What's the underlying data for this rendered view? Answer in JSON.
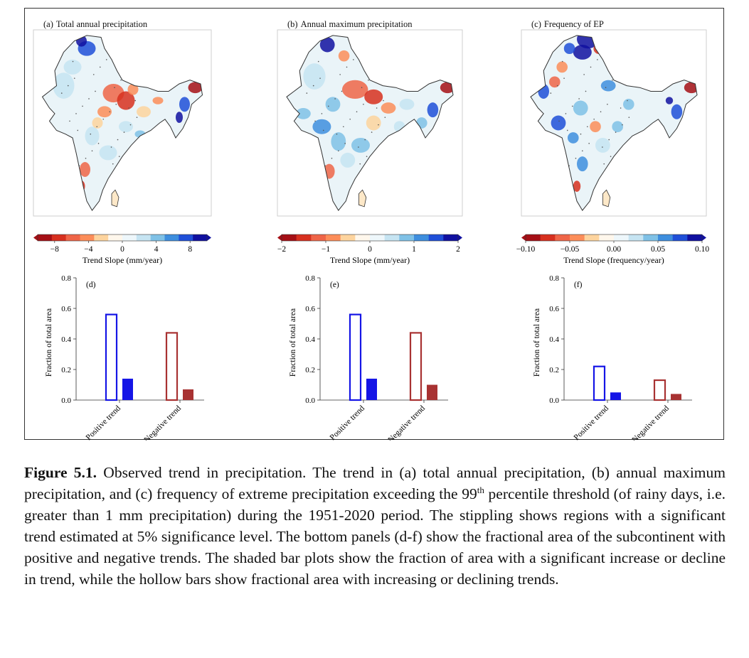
{
  "chart_data": [
    {
      "type": "heatmap",
      "panel": "(a)",
      "title": "Total annual precipitation",
      "colorbar": {
        "label": "Trend Slope (mm/year)",
        "ticks": [
          "−8",
          "−4",
          "0",
          "4",
          "8"
        ],
        "range": [
          -10,
          10
        ]
      }
    },
    {
      "type": "heatmap",
      "panel": "(b)",
      "title": "Annual maximum precipitation",
      "colorbar": {
        "label": "Trend Slope (mm/year)",
        "ticks": [
          "−2",
          "−1",
          "0",
          "1",
          "2"
        ],
        "range": [
          -2,
          2
        ]
      }
    },
    {
      "type": "heatmap",
      "panel": "(c)",
      "title": "Frequency of EP",
      "colorbar": {
        "label": "Trend Slope (frequency/year)",
        "ticks": [
          "−0.10",
          "−0.05",
          "0.00",
          "0.05",
          "0.10"
        ],
        "range": [
          -0.1,
          0.1
        ]
      }
    },
    {
      "type": "bar",
      "panel": "(d)",
      "ylabel": "Fraction of total area",
      "ylim": [
        0,
        0.8
      ],
      "yticks": [
        "0.0",
        "0.2",
        "0.4",
        "0.6",
        "0.8"
      ],
      "categories": [
        "Positive trend",
        "Negative trend"
      ],
      "values_all": [
        0.56,
        0.44
      ],
      "values_significant": [
        0.14,
        0.07
      ]
    },
    {
      "type": "bar",
      "panel": "(e)",
      "ylabel": "Fraction of total area",
      "ylim": [
        0,
        0.8
      ],
      "yticks": [
        "0.0",
        "0.2",
        "0.4",
        "0.6",
        "0.8"
      ],
      "categories": [
        "Positive trend",
        "Negative trend"
      ],
      "values_all": [
        0.56,
        0.44
      ],
      "values_significant": [
        0.14,
        0.1
      ]
    },
    {
      "type": "bar",
      "panel": "(f)",
      "ylabel": "Fraction of total area",
      "ylim": [
        0,
        0.8
      ],
      "yticks": [
        "0.0",
        "0.2",
        "0.4",
        "0.6",
        "0.8"
      ],
      "categories": [
        "Positive trend",
        "Negative trend"
      ],
      "values_all": [
        0.22,
        0.13
      ],
      "values_significant": [
        0.05,
        0.04
      ]
    }
  ],
  "colors": {
    "positive": "#1515e6",
    "negative": "#a83232",
    "colorbar": [
      "#a50f15",
      "#d7301f",
      "#ef6548",
      "#fc8d59",
      "#fdd49e",
      "#fff7ec",
      "#eef7fb",
      "#c6e4f2",
      "#7fc1e6",
      "#3e8ede",
      "#1f4fd8",
      "#1010a0"
    ]
  },
  "caption": {
    "label": "Figure 5.1.",
    "text_before_sup": " Observed trend in precipitation. The trend in (a) total annual precipitation, (b) annual maximum precipitation, and (c) frequency of extreme precipitation exceeding the 99",
    "sup": "th",
    "text_after_sup": " percentile threshold (of rainy days, i.e. greater than 1 mm precipitation) during the 1951-2020 period. The stippling shows regions with a significant trend estimated at 5% significance level. The bottom panels (d-f) show the fractional area of the subcontinent with positive and negative trends. The shaded bar plots show the fraction of area with a significant increase or decline in trend, while the hollow bars show fractional area with increasing or declining trends."
  }
}
